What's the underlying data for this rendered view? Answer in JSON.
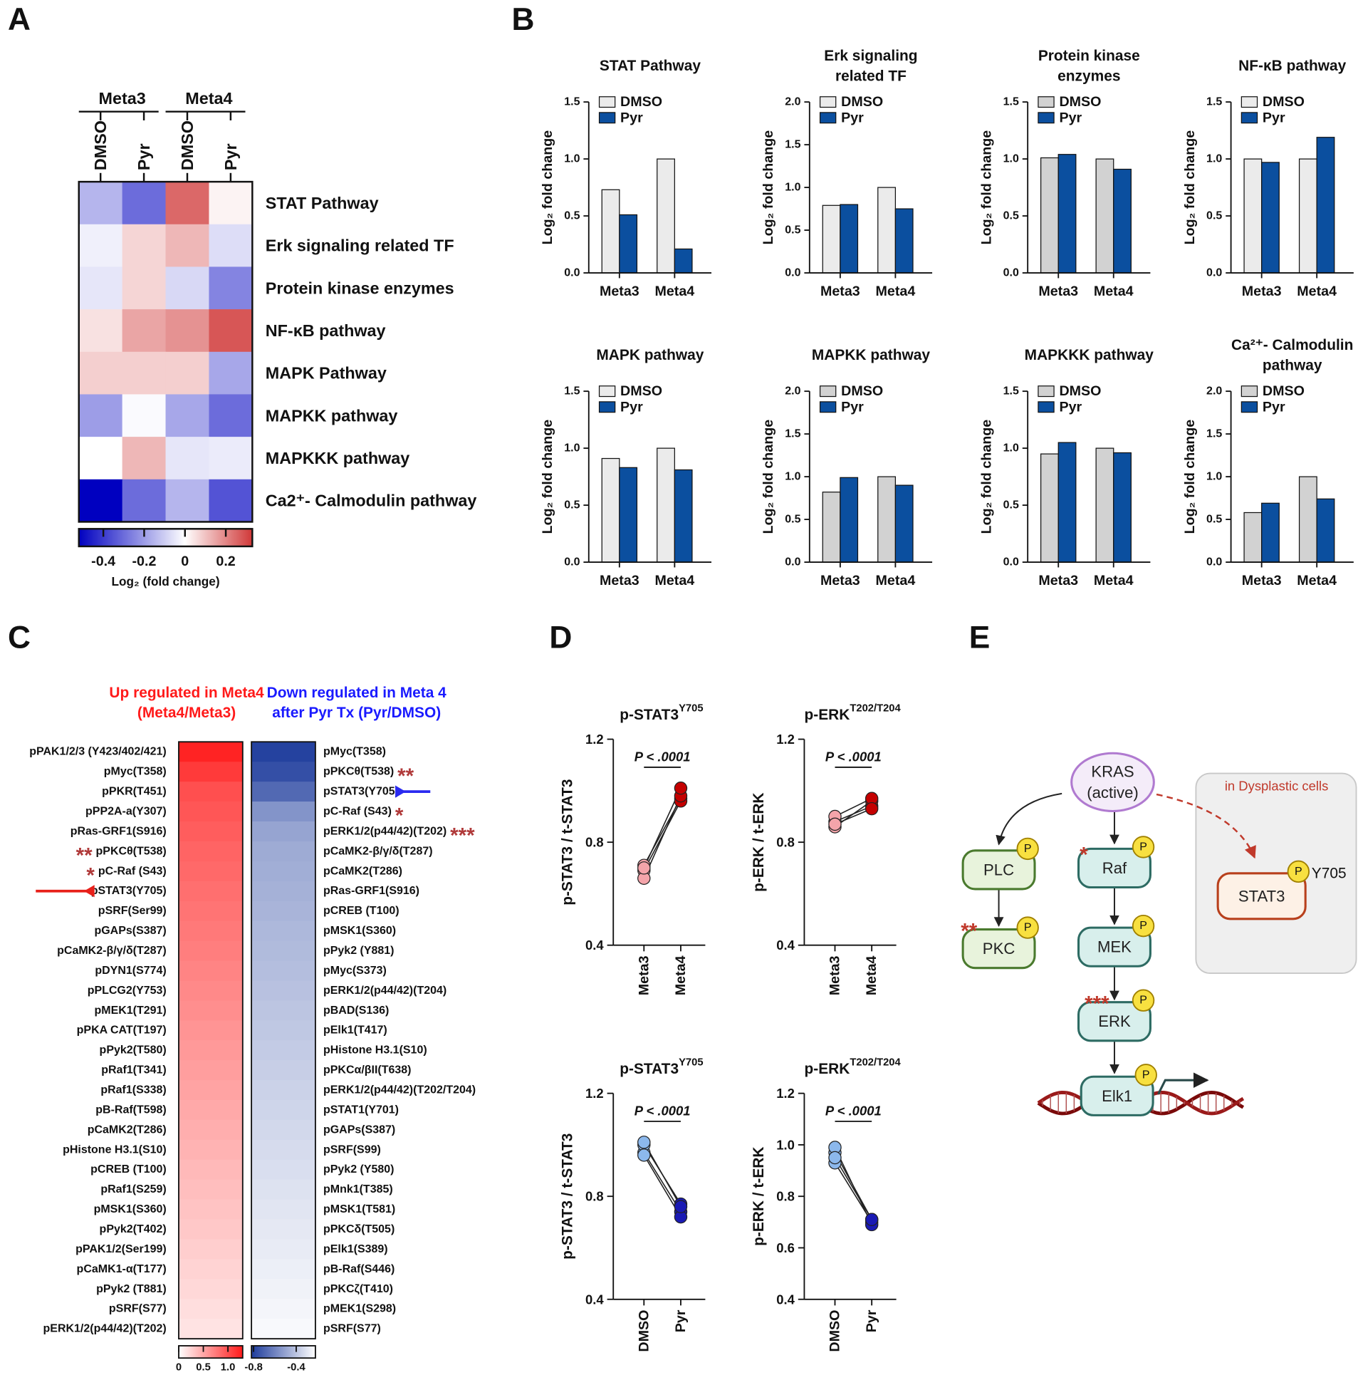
{
  "panel_labels": [
    "A",
    "B",
    "C",
    "D",
    "E"
  ],
  "chart_data": [
    {
      "type": "heatmap",
      "column_groups": [
        "Meta3",
        "Meta4"
      ],
      "columns": [
        "DMSO",
        "Pyr",
        "DMSO",
        "Pyr"
      ],
      "rows": [
        "STAT Pathway",
        "Erk signaling related TF",
        "Protein kinase enzymes",
        "NF-κB pathway",
        "MAPK Pathway",
        "MAPKK pathway",
        "MAPKKK pathway",
        "Ca2⁺- Calmodulin pathway"
      ],
      "values": [
        [
          -0.15,
          -0.3,
          0.25,
          0.02
        ],
        [
          -0.03,
          0.07,
          0.12,
          -0.07
        ],
        [
          -0.05,
          0.07,
          -0.08,
          -0.25
        ],
        [
          0.05,
          0.15,
          0.18,
          0.28
        ],
        [
          0.08,
          0.08,
          0.08,
          -0.18
        ],
        [
          -0.2,
          -0.01,
          -0.18,
          -0.3
        ],
        [
          0,
          0.12,
          -0.05,
          -0.04
        ],
        [
          -0.52,
          -0.3,
          -0.15,
          -0.35
        ]
      ],
      "zlim": [
        -0.52,
        0.33
      ],
      "colors": [
        "#0000c0",
        "#ffffff",
        "#d03838"
      ],
      "colorbar_ticks": [
        -0.4,
        -0.2,
        0,
        0.2
      ],
      "colorbar_label": "Log₂ (fold change)"
    },
    {
      "type": "bar",
      "title": [
        "STAT Pathway"
      ],
      "ylabel": "Log₂ fold change",
      "categories": [
        "Meta3",
        "Meta4"
      ],
      "series": [
        {
          "name": "DMSO",
          "color": "#ebebeb",
          "values": [
            0.73,
            1.0
          ]
        },
        {
          "name": "Pyr",
          "color": "#0b4f9f",
          "values": [
            0.51,
            0.21
          ]
        }
      ],
      "ylim": [
        0,
        1.5
      ],
      "yticks": [
        {
          "value": 0,
          "label": "0.0"
        },
        0.5,
        {
          "value": 1,
          "label": "1.0"
        },
        1.5
      ]
    },
    {
      "type": "bar",
      "title": [
        "Erk signaling",
        "related TF"
      ],
      "ylabel": "Log₂ fold change",
      "categories": [
        "Meta3",
        "Meta4"
      ],
      "series": [
        {
          "name": "DMSO",
          "color": "#ebebeb",
          "values": [
            0.79,
            1.0
          ]
        },
        {
          "name": "Pyr",
          "color": "#0b4f9f",
          "values": [
            0.8,
            0.75
          ]
        }
      ],
      "ylim": [
        0,
        2
      ],
      "yticks": [
        {
          "value": 0,
          "label": "0.0"
        },
        0.5,
        {
          "value": 1,
          "label": "1.0"
        },
        1.5,
        {
          "value": 2,
          "label": "2.0"
        }
      ]
    },
    {
      "type": "bar",
      "title": [
        "Protein kinase",
        "enzymes"
      ],
      "ylabel": "Log₂ fold change",
      "categories": [
        "Meta3",
        "Meta4"
      ],
      "series": [
        {
          "name": "DMSO",
          "color": "#d2d2d2",
          "values": [
            1.01,
            1.0
          ]
        },
        {
          "name": "Pyr",
          "color": "#0b4f9f",
          "values": [
            1.04,
            0.91
          ]
        }
      ],
      "ylim": [
        0,
        1.5
      ],
      "yticks": [
        {
          "value": 0,
          "label": "0.0"
        },
        0.5,
        {
          "value": 1,
          "label": "1.0"
        },
        1.5
      ]
    },
    {
      "type": "bar",
      "title": [
        "NF-κB pathway"
      ],
      "ylabel": "Log₂ fold change",
      "categories": [
        "Meta3",
        "Meta4"
      ],
      "series": [
        {
          "name": "DMSO",
          "color": "#ebebeb",
          "values": [
            1.0,
            1.0
          ]
        },
        {
          "name": "Pyr",
          "color": "#0b4f9f",
          "values": [
            0.97,
            1.19
          ]
        }
      ],
      "ylim": [
        0,
        1.5
      ],
      "yticks": [
        {
          "value": 0,
          "label": "0.0"
        },
        0.5,
        {
          "value": 1,
          "label": "1.0"
        },
        1.5
      ]
    },
    {
      "type": "bar",
      "title": [
        "MAPK pathway"
      ],
      "ylabel": "Log₂ fold change",
      "categories": [
        "Meta3",
        "Meta4"
      ],
      "series": [
        {
          "name": "DMSO",
          "color": "#ebebeb",
          "values": [
            0.91,
            1.0
          ]
        },
        {
          "name": "Pyr",
          "color": "#0b4f9f",
          "values": [
            0.83,
            0.81
          ]
        }
      ],
      "ylim": [
        0,
        1.5
      ],
      "yticks": [
        {
          "value": 0,
          "label": "0.0"
        },
        0.5,
        {
          "value": 1,
          "label": "1.0"
        },
        1.5
      ]
    },
    {
      "type": "bar",
      "title": [
        "MAPKK pathway"
      ],
      "ylabel": "Log₂ fold change",
      "categories": [
        "Meta3",
        "Meta4"
      ],
      "series": [
        {
          "name": "DMSO",
          "color": "#d2d2d2",
          "values": [
            0.82,
            1.0
          ]
        },
        {
          "name": "Pyr",
          "color": "#0b4f9f",
          "values": [
            0.99,
            0.9
          ]
        }
      ],
      "ylim": [
        0,
        2
      ],
      "yticks": [
        {
          "value": 0,
          "label": "0.0"
        },
        0.5,
        {
          "value": 1,
          "label": "1.0"
        },
        1.5,
        {
          "value": 2,
          "label": "2.0"
        }
      ]
    },
    {
      "type": "bar",
      "title": [
        "MAPKKK pathway"
      ],
      "ylabel": "Log₂ fold change",
      "categories": [
        "Meta3",
        "Meta4"
      ],
      "series": [
        {
          "name": "DMSO",
          "color": "#d2d2d2",
          "values": [
            0.95,
            1.0
          ]
        },
        {
          "name": "Pyr",
          "color": "#0b4f9f",
          "values": [
            1.05,
            0.96
          ]
        }
      ],
      "ylim": [
        0,
        1.5
      ],
      "yticks": [
        {
          "value": 0,
          "label": "0.0"
        },
        0.5,
        {
          "value": 1,
          "label": "1.0"
        },
        1.5
      ]
    },
    {
      "type": "bar",
      "title": [
        "Ca²⁺- Calmodulin",
        "pathway"
      ],
      "ylabel": "Log₂ fold change",
      "categories": [
        "Meta3",
        "Meta4"
      ],
      "series": [
        {
          "name": "DMSO",
          "color": "#d2d2d2",
          "values": [
            0.58,
            1.0
          ]
        },
        {
          "name": "Pyr",
          "color": "#0b4f9f",
          "values": [
            0.69,
            0.74
          ]
        }
      ],
      "ylim": [
        0,
        2
      ],
      "yticks": [
        {
          "value": 0,
          "label": "0.0"
        },
        0.5,
        {
          "value": 1,
          "label": "1.0"
        },
        1.5,
        {
          "value": 2,
          "label": "2.0"
        }
      ]
    },
    {
      "type": "column-heatmap",
      "title": [
        "Up regulated in Meta4",
        "(Meta4/Meta3)"
      ],
      "title_color": "#ff1a1a",
      "rows": [
        "pPAK1/2/3 (Y423/402/421)",
        "pMyc(T358)",
        "pPKR(T451)",
        "pPP2A-a(Y307)",
        "pRas-GRF1(S916)",
        "pPKCθ(T538)",
        "pC-Raf (S43)",
        "pSTAT3(Y705)",
        "pSRF(Ser99)",
        "pGAPs(S387)",
        "pCaMK2-β/γ/δ(T287)",
        "pDYN1(S774)",
        "pPLCG2(Y753)",
        "pMEK1(T291)",
        "pPKA CAT(T197)",
        "pPyk2(T580)",
        "pRaf1(T341)",
        "pRaf1(S338)",
        "pB-Raf(T598)",
        "pCaMK2(T286)",
        "pHistone H3.1(S10)",
        "pCREB (T100)",
        "pRaf1(S259)",
        "pMSK1(S360)",
        "pPyk2(T402)",
        "pPAK1/2(Ser199)",
        "pCaMK1-α(T177)",
        "pPyk2 (T881)",
        "pSRF(S77)",
        "pERK1/2(p44/42)(T202)"
      ],
      "values": [
        1.25,
        1.12,
        1.0,
        0.96,
        0.92,
        0.88,
        0.85,
        0.82,
        0.79,
        0.76,
        0.73,
        0.7,
        0.67,
        0.64,
        0.61,
        0.58,
        0.55,
        0.52,
        0.49,
        0.46,
        0.43,
        0.4,
        0.37,
        0.34,
        0.31,
        0.28,
        0.25,
        0.22,
        0.19,
        0.16
      ],
      "zlim": [
        0,
        1.3
      ],
      "colors": [
        "#ffffff",
        "#ff1a1a"
      ],
      "colorbar_ticks": [
        0,
        0.5,
        {
          "value": 1,
          "label": "1.0"
        }
      ],
      "annotations": [
        {
          "row": 5,
          "text": "**"
        },
        {
          "row": 6,
          "text": "*"
        }
      ],
      "annotation_color": "#b03a3a",
      "arrow_row": 7,
      "arrow_color": "#e8201a"
    },
    {
      "type": "column-heatmap",
      "title": [
        "Down regulated in Meta 4",
        "after Pyr Tx (Pyr/DMSO)"
      ],
      "title_color": "#1a1aff",
      "rows": [
        "pMyc(T358)",
        "pPKCθ(T538)",
        "pSTAT3(Y705)",
        "pC-Raf (S43)",
        "pERK1/2(p44/42)(T202)",
        "pCaMK2-β/γ/δ(T287)",
        "pCaMK2(T286)",
        "pRas-GRF1(S916)",
        "pCREB (T100)",
        "pMSK1(S360)",
        "pPyk2 (Y881)",
        "pMyc(S373)",
        "pERK1/2(p44/42)(T204)",
        "pBAD(S136)",
        "pElk1(T417)",
        "pHistone H3.1(S10)",
        "pPKCα/βII(T638)",
        "pERK1/2(p44/42)(T202/T204)",
        "pSTAT1(Y701)",
        "pGAPs(S387)",
        "pSRF(S99)",
        "pPyk2 (Y580)",
        "pMnk1(T385)",
        "pMSK1(T581)",
        "pPKCδ(T505)",
        "pElk1(S389)",
        "pB-Raf(S446)",
        "pPKCζ(T410)",
        "pMEK1(S298)",
        "pSRF(S77)"
      ],
      "values": [
        -0.8,
        -0.76,
        -0.68,
        -0.55,
        -0.5,
        -0.48,
        -0.47,
        -0.46,
        -0.45,
        -0.44,
        -0.43,
        -0.42,
        -0.41,
        -0.4,
        -0.39,
        -0.38,
        -0.37,
        -0.36,
        -0.35,
        -0.34,
        -0.33,
        -0.32,
        -0.31,
        -0.3,
        -0.29,
        -0.28,
        -0.27,
        -0.26,
        -0.25,
        -0.24
      ],
      "zlim": [
        -0.82,
        -0.22
      ],
      "colors": [
        "#1e3c9c",
        "#ffffff"
      ],
      "colorbar_ticks": [
        -0.8,
        -0.4
      ],
      "annotations": [
        {
          "row": 1,
          "text": "**"
        },
        {
          "row": 3,
          "text": "*"
        },
        {
          "row": 4,
          "text": "***"
        }
      ],
      "annotation_color": "#b03a3a",
      "arrow_row": 2,
      "arrow_color": "#2a2af0"
    },
    {
      "type": "paired-dot",
      "title": "p-STAT3",
      "title_sup": "Y705",
      "ylabel": "p-STAT3 / t-STAT3",
      "categories": [
        "Meta3",
        "Meta4"
      ],
      "colors": [
        "#f4a4aa",
        "#c40000"
      ],
      "pairs": [
        [
          0.71,
          0.97
        ],
        [
          0.69,
          0.96
        ],
        [
          0.66,
          0.98
        ],
        [
          0.7,
          1.01
        ]
      ],
      "ylim": [
        0.4,
        1.2
      ],
      "yticks": [
        0.4,
        0.8,
        1.2
      ],
      "annotation": "P < .0001"
    },
    {
      "type": "paired-dot",
      "title": "p-ERK",
      "title_sup": "T202/T204",
      "ylabel": "p-ERK / t-ERK",
      "categories": [
        "Meta3",
        "Meta4"
      ],
      "colors": [
        "#f4a4aa",
        "#c40000"
      ],
      "pairs": [
        [
          0.88,
          0.94
        ],
        [
          0.86,
          0.96
        ],
        [
          0.9,
          0.97
        ],
        [
          0.87,
          0.93
        ]
      ],
      "ylim": [
        0.4,
        1.2
      ],
      "yticks": [
        0.4,
        0.8,
        1.2
      ],
      "annotation": "P < .0001"
    },
    {
      "type": "paired-dot",
      "title": "p-STAT3",
      "title_sup": "Y705",
      "ylabel": "p-STAT3 / t-STAT3",
      "categories": [
        "DMSO",
        "Pyr"
      ],
      "colors": [
        "#8cb8ec",
        "#1a1ab4"
      ],
      "pairs": [
        [
          0.97,
          0.74
        ],
        [
          1.0,
          0.77
        ],
        [
          0.96,
          0.72
        ],
        [
          1.01,
          0.76
        ]
      ],
      "ylim": [
        0.4,
        1.2
      ],
      "yticks": [
        0.4,
        0.8,
        1.2
      ],
      "annotation": "P < .0001"
    },
    {
      "type": "paired-dot",
      "title": "p-ERK",
      "title_sup": "T202/T204",
      "ylabel": "p-ERK / t-ERK",
      "categories": [
        "DMSO",
        "Pyr"
      ],
      "colors": [
        "#8cb8ec",
        "#1a1ab4"
      ],
      "pairs": [
        [
          0.97,
          0.71
        ],
        [
          0.93,
          0.7
        ],
        [
          0.99,
          0.69
        ],
        [
          0.95,
          0.71
        ]
      ],
      "ylim": [
        0.4,
        1.2
      ],
      "yticks": [
        0.4,
        0.6,
        0.8,
        {
          "value": 1,
          "label": "1.0"
        },
        1.2
      ],
      "annotation": "P < .0001"
    }
  ],
  "diagram": {
    "kras": [
      "KRAS",
      "(active)"
    ],
    "nodes": [
      "PLC",
      "PKC",
      "Raf",
      "MEK",
      "ERK",
      "Elk1",
      "STAT3"
    ],
    "phospho": "P",
    "site": "Y705",
    "region_label": "in Dysplastic cells",
    "stars": [
      "*",
      "**",
      "***"
    ]
  }
}
